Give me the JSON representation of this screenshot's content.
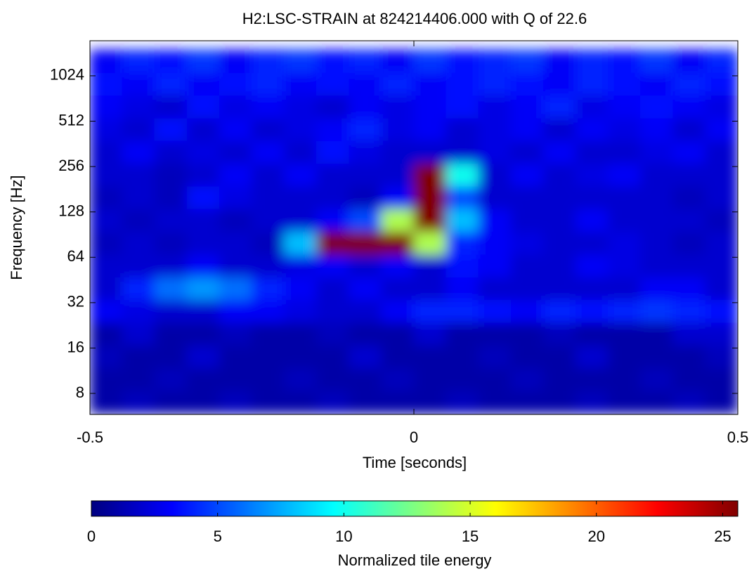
{
  "chart_data": {
    "type": "heatmap",
    "title": "H2:LSC-STRAIN at 824214406.000 with Q of 22.6",
    "x_label": "Time [seconds]",
    "y_label": "Frequency [Hz]",
    "xlim": [
      -0.5,
      0.5
    ],
    "xticks": [
      -0.5,
      0,
      0.5
    ],
    "ylim": [
      5.8,
      1750
    ],
    "yticks": [
      8,
      16,
      32,
      64,
      128,
      256,
      512,
      1024
    ],
    "yscale": "log",
    "colormap": "jet",
    "x": [
      -0.475,
      -0.425,
      -0.375,
      -0.325,
      -0.275,
      -0.225,
      -0.175,
      -0.125,
      -0.075,
      -0.025,
      0.025,
      0.075,
      0.125,
      0.175,
      0.225,
      0.275,
      0.325,
      0.375,
      0.425,
      0.475
    ],
    "y": [
      7,
      10,
      14,
      20,
      28,
      40,
      56,
      80,
      113,
      160,
      226,
      320,
      452,
      640,
      905,
      1280
    ],
    "z": [
      [
        1,
        1.5,
        1,
        1,
        1.5,
        1,
        1,
        1.5,
        1,
        1,
        1,
        1.5,
        1,
        1,
        1,
        1.5,
        1,
        1,
        1.5,
        1
      ],
      [
        1,
        1,
        1.5,
        1,
        1,
        1,
        1.5,
        1,
        1,
        1.5,
        1,
        1,
        1,
        1.5,
        1,
        1,
        1,
        1.5,
        1,
        1
      ],
      [
        1.5,
        1,
        1,
        2,
        1,
        1,
        1,
        1,
        2,
        1,
        1,
        1,
        1.5,
        1,
        1,
        2,
        1,
        1,
        1,
        1.5
      ],
      [
        1,
        2,
        1,
        1,
        1.5,
        1,
        1,
        1.5,
        1,
        1,
        2,
        1,
        1,
        1,
        1.5,
        1,
        1,
        1,
        2,
        2
      ],
      [
        3,
        2.5,
        2,
        2,
        3,
        3,
        2.5,
        2,
        2,
        3,
        4,
        4,
        3.5,
        3,
        4,
        3.5,
        4,
        4.5,
        4,
        3.5
      ],
      [
        2,
        4,
        6,
        7,
        6,
        4,
        3,
        2,
        3,
        2,
        2,
        3,
        2,
        2,
        2,
        2,
        2,
        3,
        3,
        2
      ],
      [
        2,
        2,
        2,
        3,
        2,
        2,
        2.5,
        3,
        2,
        3,
        2,
        3.5,
        3,
        2,
        2,
        3,
        2.5,
        2,
        2,
        2
      ],
      [
        1.5,
        2,
        1.5,
        2,
        2,
        1.5,
        8,
        25.6,
        25.6,
        25.6,
        14,
        4,
        3,
        2.5,
        2,
        2,
        2.5,
        2,
        1.5,
        2
      ],
      [
        2,
        1.5,
        2,
        2,
        1.5,
        2,
        2,
        3,
        5,
        14,
        25.6,
        8,
        3,
        2,
        2,
        3,
        2,
        2,
        2,
        1.5
      ],
      [
        1.5,
        2,
        1.5,
        3.5,
        2.5,
        2,
        2,
        2,
        1.5,
        3,
        25.6,
        5,
        2,
        2,
        2,
        2,
        2,
        2,
        1.5,
        2
      ],
      [
        2,
        2,
        1.5,
        2,
        3,
        2,
        3,
        2,
        2,
        2,
        25.6,
        10,
        2,
        3,
        2,
        2.5,
        3,
        2,
        2,
        2
      ],
      [
        2,
        3,
        2,
        2.5,
        2,
        3,
        2,
        3.5,
        2.5,
        2,
        2,
        2,
        2.5,
        2,
        3,
        2,
        2,
        2.5,
        3,
        2
      ],
      [
        2.5,
        2,
        3.5,
        2,
        3,
        2,
        2.5,
        3,
        4,
        2.5,
        3,
        2,
        2.5,
        3,
        2,
        3,
        2.5,
        3,
        2,
        3
      ],
      [
        3,
        2.5,
        2,
        3.5,
        2.5,
        3,
        2.5,
        2,
        3,
        2.5,
        3,
        3.5,
        2.5,
        3,
        4,
        2.5,
        3,
        3.5,
        3,
        2.5
      ],
      [
        3.5,
        3,
        4,
        3,
        3.5,
        4,
        3,
        3.5,
        3,
        4,
        3,
        3.5,
        4,
        3.5,
        3,
        4,
        3.5,
        3,
        4,
        3.5
      ],
      [
        3,
        4,
        3.5,
        4.5,
        3,
        4,
        4.5,
        3.5,
        4,
        3,
        4.5,
        3.5,
        4,
        4.5,
        3,
        4,
        3.5,
        4.5,
        3,
        4
      ]
    ],
    "colorbar": {
      "label": "Normalized tile energy",
      "lim": [
        0,
        25.6
      ],
      "ticks": [
        0,
        5,
        10,
        15,
        20,
        25
      ]
    }
  }
}
